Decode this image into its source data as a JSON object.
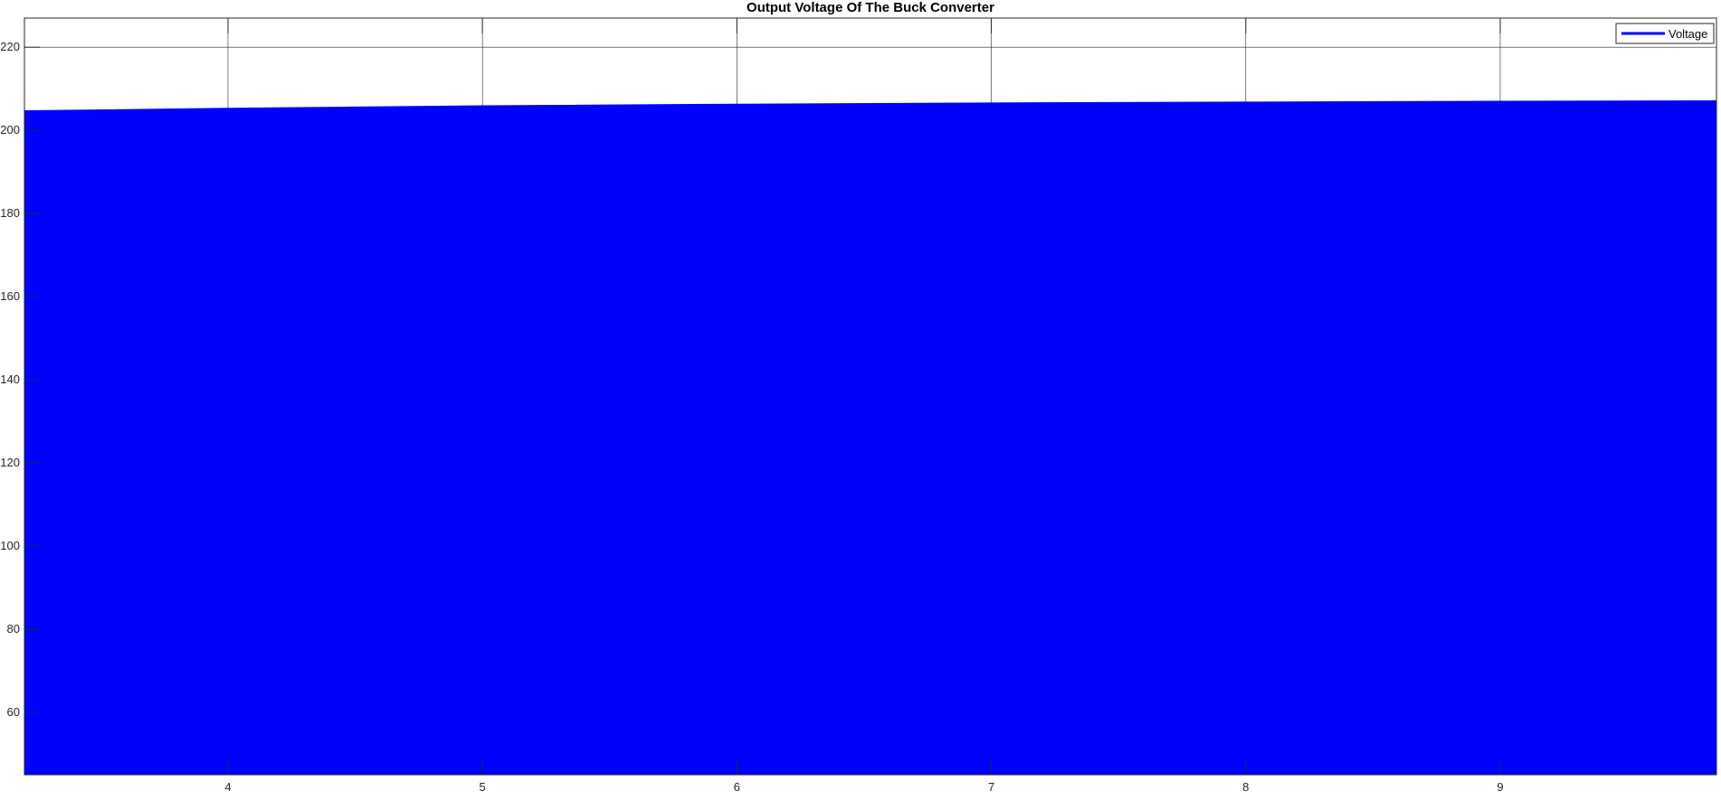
{
  "chart_data": {
    "type": "area",
    "title": "Output Voltage Of The Buck Converter",
    "xlabel": "",
    "ylabel": "",
    "xlim": [
      3.2,
      9.85
    ],
    "ylim": [
      45,
      227
    ],
    "x_ticks": [
      4,
      5,
      6,
      7,
      8,
      9
    ],
    "y_ticks": [
      60,
      80,
      100,
      120,
      140,
      160,
      180,
      200,
      220
    ],
    "grid": true,
    "legend_location": "top-right",
    "series": [
      {
        "name": "Voltage",
        "color": "#0000ff",
        "x": [
          3.2,
          4,
          5,
          6,
          7,
          8,
          9,
          9.85
        ],
        "y_upper": [
          204.7,
          205.3,
          205.9,
          206.3,
          206.6,
          206.8,
          207.0,
          207.1
        ],
        "y_lower": [
          45,
          45,
          45,
          45,
          45,
          45,
          45,
          45
        ]
      }
    ]
  }
}
